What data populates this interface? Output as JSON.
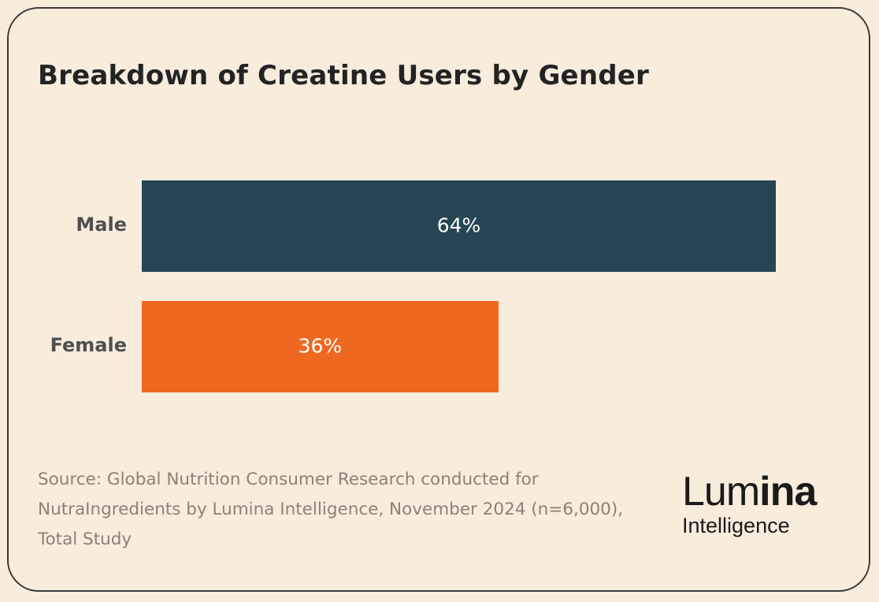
{
  "chart_data": {
    "type": "bar",
    "orientation": "horizontal",
    "title": "Breakdown of Creatine Users by Gender",
    "categories": [
      "Male",
      "Female"
    ],
    "values": [
      64,
      36
    ],
    "value_labels": [
      "64%",
      "36%"
    ],
    "colors": [
      "#264653",
      "#ef6820"
    ],
    "xlabel": "",
    "ylabel": "",
    "xlim": [
      0,
      64
    ],
    "grid": false,
    "legend": "none"
  },
  "source": {
    "text": "Source: Global Nutrition Consumer Research conducted for NutraIngredients by Lumina Intelligence, November 2024 (n=6,000), Total Study"
  },
  "logo": {
    "main_thin": "Lum",
    "main_bold": "ina",
    "sub": "Intelligence"
  }
}
